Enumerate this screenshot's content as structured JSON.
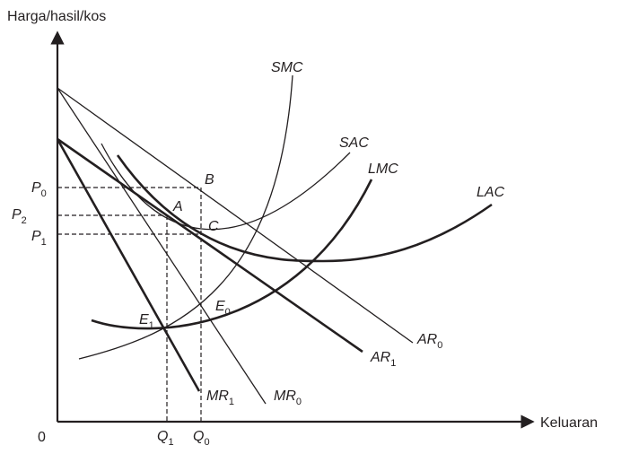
{
  "axes": {
    "y_title": "Harga/hasil/kos",
    "x_title": "Keluaran",
    "origin": "0"
  },
  "curves": {
    "smc": "SMC",
    "sac": "SAC",
    "lmc": "LMC",
    "lac": "LAC",
    "ar0": {
      "main": "AR",
      "sub": "0"
    },
    "ar1": {
      "main": "AR",
      "sub": "1"
    },
    "mr0": {
      "main": "MR",
      "sub": "0"
    },
    "mr1": {
      "main": "MR",
      "sub": "1"
    }
  },
  "points": {
    "a": "A",
    "b": "B",
    "c": "C",
    "e0": {
      "main": "E",
      "sub": "0"
    },
    "e1": {
      "main": "E",
      "sub": "1"
    }
  },
  "prices": {
    "p0": {
      "main": "P",
      "sub": "0"
    },
    "p1": {
      "main": "P",
      "sub": "1"
    },
    "p2": {
      "main": "P",
      "sub": "2"
    }
  },
  "quantities": {
    "q0": {
      "main": "Q",
      "sub": "0"
    },
    "q1": {
      "main": "Q",
      "sub": "1"
    }
  }
}
